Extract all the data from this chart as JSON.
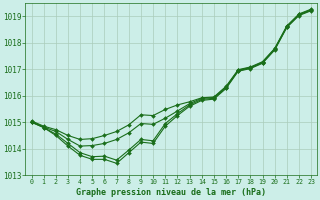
{
  "background_color": "#cceee8",
  "grid_color": "#aaccbb",
  "line_color": "#1a6e1a",
  "marker_color": "#1a6e1a",
  "xlabel": "Graphe pression niveau de la mer (hPa)",
  "ylim": [
    1013.0,
    1019.5
  ],
  "xlim": [
    -0.5,
    23.5
  ],
  "yticks": [
    1013,
    1014,
    1015,
    1016,
    1017,
    1018,
    1019
  ],
  "xticks": [
    0,
    1,
    2,
    3,
    4,
    5,
    6,
    7,
    8,
    9,
    10,
    11,
    12,
    13,
    14,
    15,
    16,
    17,
    18,
    19,
    20,
    21,
    22,
    23
  ],
  "series": [
    [
      1015.0,
      1014.8,
      1014.5,
      1014.1,
      1013.75,
      1013.6,
      1013.6,
      1013.45,
      1013.85,
      1014.25,
      1014.2,
      1014.85,
      1015.25,
      1015.6,
      1015.82,
      1015.87,
      1016.27,
      1016.92,
      1017.02,
      1017.22,
      1017.72,
      1018.57,
      1019.02,
      1019.2
    ],
    [
      1015.0,
      1014.8,
      1014.55,
      1014.2,
      1013.85,
      1013.7,
      1013.72,
      1013.57,
      1013.95,
      1014.35,
      1014.3,
      1014.95,
      1015.32,
      1015.65,
      1015.86,
      1015.9,
      1016.3,
      1016.94,
      1017.04,
      1017.24,
      1017.74,
      1018.59,
      1019.04,
      1019.22
    ],
    [
      1015.02,
      1014.82,
      1014.65,
      1014.35,
      1014.1,
      1014.12,
      1014.2,
      1014.35,
      1014.6,
      1014.95,
      1014.92,
      1015.15,
      1015.42,
      1015.7,
      1015.9,
      1015.93,
      1016.33,
      1016.96,
      1017.06,
      1017.26,
      1017.76,
      1018.61,
      1019.06,
      1019.24
    ],
    [
      1015.05,
      1014.85,
      1014.72,
      1014.5,
      1014.35,
      1014.38,
      1014.5,
      1014.65,
      1014.9,
      1015.28,
      1015.25,
      1015.48,
      1015.65,
      1015.77,
      1015.92,
      1015.95,
      1016.35,
      1016.98,
      1017.08,
      1017.28,
      1017.78,
      1018.63,
      1019.08,
      1019.26
    ]
  ]
}
